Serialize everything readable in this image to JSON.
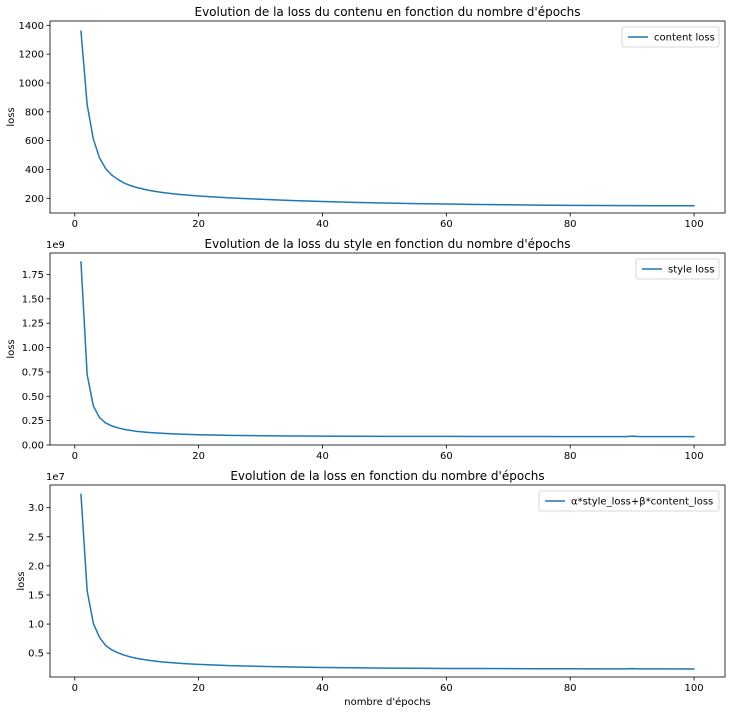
{
  "colors": {
    "series": "#1f77b4"
  },
  "chart_data": [
    {
      "type": "line",
      "title": "Evolution de la loss du contenu en fonction du nombre d'épochs",
      "xlabel": "",
      "ylabel": "loss",
      "offset_text": "",
      "xlim": [
        -4,
        105
      ],
      "ylim": [
        98,
        1430
      ],
      "xticks": [
        0,
        20,
        40,
        60,
        80,
        100
      ],
      "xtick_labels": [
        "0",
        "20",
        "40",
        "60",
        "80",
        "100"
      ],
      "yticks": [
        200,
        400,
        600,
        800,
        1000,
        1200,
        1400
      ],
      "ytick_labels": [
        "200",
        "400",
        "600",
        "800",
        "1000",
        "1200",
        "1400"
      ],
      "legend_position": "upper right",
      "grid": false,
      "series": [
        {
          "name": "content loss",
          "x": [
            1,
            2,
            3,
            4,
            5,
            6,
            7,
            8,
            9,
            10,
            12,
            14,
            16,
            18,
            20,
            25,
            30,
            35,
            40,
            45,
            50,
            55,
            60,
            65,
            70,
            75,
            80,
            85,
            90,
            95,
            100
          ],
          "y": [
            1360,
            850,
            610,
            480,
            405,
            360,
            330,
            305,
            288,
            275,
            255,
            241,
            231,
            223,
            216,
            203,
            193,
            185,
            178,
            172,
            167,
            163,
            160,
            157,
            155,
            153,
            151,
            150,
            149,
            148,
            148
          ]
        }
      ]
    },
    {
      "type": "line",
      "title": "Evolution de la loss du style en fonction du nombre d'épochs",
      "xlabel": "",
      "ylabel": "loss",
      "offset_text": "1e9",
      "xlim": [
        -4,
        105
      ],
      "ylim": [
        0,
        1.97
      ],
      "xticks": [
        0,
        20,
        40,
        60,
        80,
        100
      ],
      "xtick_labels": [
        "0",
        "20",
        "40",
        "60",
        "80",
        "100"
      ],
      "yticks": [
        0,
        0.25,
        0.5,
        0.75,
        1.0,
        1.25,
        1.5,
        1.75
      ],
      "ytick_labels": [
        "0.00",
        "0.25",
        "0.50",
        "0.75",
        "1.00",
        "1.25",
        "1.50",
        "1.75"
      ],
      "legend_position": "upper right",
      "grid": false,
      "series": [
        {
          "name": "style loss",
          "x": [
            1,
            2,
            3,
            4,
            5,
            6,
            7,
            8,
            9,
            10,
            12,
            14,
            16,
            18,
            20,
            25,
            30,
            35,
            40,
            45,
            50,
            55,
            60,
            65,
            70,
            75,
            80,
            85,
            89,
            90,
            91,
            92,
            95,
            100
          ],
          "y": [
            1.88,
            0.72,
            0.4,
            0.28,
            0.225,
            0.195,
            0.175,
            0.16,
            0.15,
            0.14,
            0.128,
            0.12,
            0.114,
            0.109,
            0.105,
            0.099,
            0.095,
            0.093,
            0.091,
            0.09,
            0.089,
            0.088,
            0.088,
            0.087,
            0.087,
            0.087,
            0.086,
            0.086,
            0.086,
            0.091,
            0.087,
            0.086,
            0.086,
            0.086
          ]
        }
      ]
    },
    {
      "type": "line",
      "title": "Evolution de la loss en fonction du nombre d'épochs",
      "xlabel": "nombre d'épochs",
      "ylabel": "loss",
      "offset_text": "1e7",
      "xlim": [
        -4,
        105
      ],
      "ylim": [
        0.09,
        3.39
      ],
      "xticks": [
        0,
        20,
        40,
        60,
        80,
        100
      ],
      "xtick_labels": [
        "0",
        "20",
        "40",
        "60",
        "80",
        "100"
      ],
      "yticks": [
        0.5,
        1.0,
        1.5,
        2.0,
        2.5,
        3.0
      ],
      "ytick_labels": [
        "0.5",
        "1.0",
        "1.5",
        "2.0",
        "2.5",
        "3.0"
      ],
      "legend_position": "upper right",
      "grid": false,
      "series": [
        {
          "name": "α*style_loss+β*content_loss",
          "x": [
            1,
            2,
            3,
            4,
            5,
            6,
            7,
            8,
            9,
            10,
            12,
            14,
            16,
            18,
            20,
            25,
            30,
            35,
            40,
            45,
            50,
            55,
            60,
            65,
            70,
            75,
            80,
            85,
            89,
            90,
            91,
            92,
            95,
            100
          ],
          "y": [
            3.23,
            1.57,
            1.01,
            0.77,
            0.63,
            0.555,
            0.505,
            0.465,
            0.435,
            0.41,
            0.375,
            0.35,
            0.333,
            0.318,
            0.306,
            0.285,
            0.272,
            0.262,
            0.254,
            0.248,
            0.243,
            0.24,
            0.237,
            0.235,
            0.233,
            0.232,
            0.231,
            0.23,
            0.229,
            0.234,
            0.23,
            0.229,
            0.229,
            0.228
          ]
        }
      ]
    }
  ]
}
